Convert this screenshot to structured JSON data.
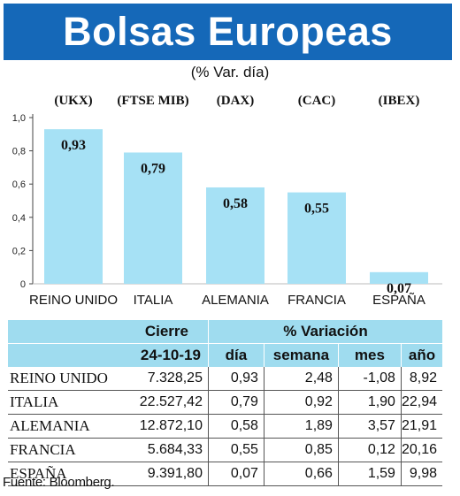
{
  "title": "Bolsas Europeas",
  "subtitle": "(% Var. día)",
  "chart_data": {
    "type": "bar",
    "indices": [
      "(UKX)",
      "(FTSE MIB)",
      "(DAX)",
      "(CAC)",
      "(IBEX)"
    ],
    "categories": [
      "REINO UNIDO",
      "ITALIA",
      "ALEMANIA",
      "FRANCIA",
      "ESPAÑA"
    ],
    "values": [
      0.93,
      0.79,
      0.58,
      0.55,
      0.07
    ],
    "value_labels": [
      "0,93",
      "0,79",
      "0,58",
      "0,55",
      "0,07"
    ],
    "yticks": [
      "0",
      "0,2",
      "0,4",
      "0,6",
      "0,8",
      "1,0"
    ],
    "ylim": [
      0,
      1.0
    ],
    "bar_color": "#a6e1f5"
  },
  "table": {
    "header": {
      "cierre": "Cierre",
      "variacion": "% Variación",
      "fecha": "24-10-19",
      "dia": "día",
      "semana": "semana",
      "mes": "mes",
      "ano": "año"
    },
    "rows": [
      {
        "name": "REINO UNIDO",
        "cierre": "7.328,25",
        "dia": "0,93",
        "semana": "2,48",
        "mes": "-1,08",
        "ano": "8,92"
      },
      {
        "name": "ITALIA",
        "cierre": "22.527,42",
        "dia": "0,79",
        "semana": "0,92",
        "mes": "1,90",
        "ano": "22,94"
      },
      {
        "name": "ALEMANIA",
        "cierre": "12.872,10",
        "dia": "0,58",
        "semana": "1,89",
        "mes": "3,57",
        "ano": "21,91"
      },
      {
        "name": "FRANCIA",
        "cierre": "5.684,33",
        "dia": "0,55",
        "semana": "0,85",
        "mes": "0,12",
        "ano": "20,16"
      },
      {
        "name": "ESPAÑA",
        "cierre": "9.391,80",
        "dia": "0,07",
        "semana": "0,66",
        "mes": "1,59",
        "ano": "9,98"
      }
    ],
    "header_bg": "#9fdcef"
  },
  "source": "Fuente: Bloomberg."
}
